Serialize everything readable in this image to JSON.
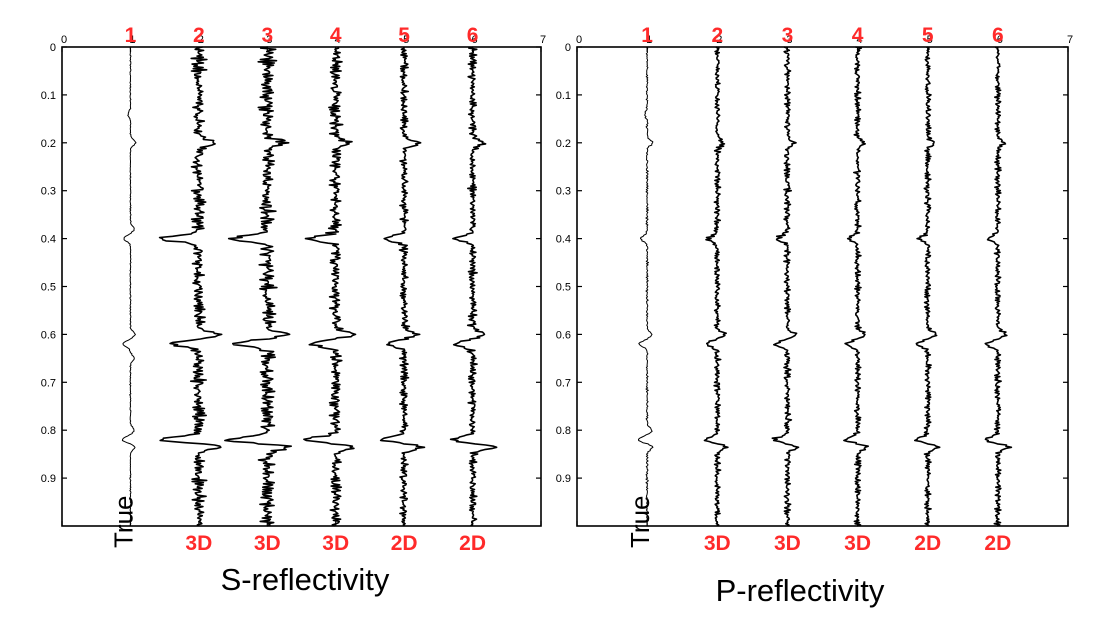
{
  "colors": {
    "trace": "#000000",
    "label_red": "#ff2a2a",
    "background": "#ffffff"
  },
  "chart_data": [
    {
      "type": "line",
      "title": "S-reflectivity",
      "x_axis": {
        "ticks": [
          0,
          1,
          2,
          3,
          4,
          5,
          6,
          7
        ],
        "range": [
          0,
          7
        ],
        "position": "top"
      },
      "y_axis": {
        "ticks": [
          0,
          0.1,
          0.2,
          0.3,
          0.4,
          0.5,
          0.6,
          0.7,
          0.8,
          0.9
        ],
        "range": [
          0,
          1.0
        ],
        "inverted": true
      },
      "grid": false,
      "trace_labels_top": [
        "1",
        "2",
        "3",
        "4",
        "5",
        "6"
      ],
      "trace_labels_bottom": [
        "True",
        "3D",
        "3D",
        "3D",
        "2D",
        "2D"
      ],
      "traces": [
        {
          "label": "1",
          "kind": "True",
          "center": 1,
          "amplitude": 0.05,
          "noise": 0.18,
          "spikes": [
            [
              0.14,
              -0.3
            ],
            [
              0.2,
              0.7
            ],
            [
              0.4,
              -0.9
            ],
            [
              0.38,
              0.5
            ],
            [
              0.6,
              0.6
            ],
            [
              0.62,
              -1.0
            ],
            [
              0.65,
              0.5
            ],
            [
              0.8,
              0.5
            ],
            [
              0.82,
              -1.1
            ],
            [
              0.835,
              0.6
            ]
          ]
        },
        {
          "label": "2",
          "kind": "3D",
          "center": 2,
          "amplitude": 0.22,
          "noise": 0.45,
          "spikes": [
            [
              0.2,
              0.5
            ],
            [
              0.4,
              -1.2
            ],
            [
              0.6,
              0.6
            ],
            [
              0.62,
              -0.8
            ],
            [
              0.82,
              -1.2
            ],
            [
              0.835,
              0.7
            ]
          ]
        },
        {
          "label": "3",
          "kind": "3D",
          "center": 3,
          "amplitude": 0.24,
          "noise": 0.5,
          "spikes": [
            [
              0.2,
              0.5
            ],
            [
              0.4,
              -1.0
            ],
            [
              0.6,
              0.5
            ],
            [
              0.62,
              -0.9
            ],
            [
              0.82,
              -1.1
            ],
            [
              0.835,
              0.6
            ]
          ]
        },
        {
          "label": "4",
          "kind": "3D",
          "center": 4,
          "amplitude": 0.2,
          "noise": 0.45,
          "spikes": [
            [
              0.2,
              0.4
            ],
            [
              0.4,
              -0.9
            ],
            [
              0.6,
              0.6
            ],
            [
              0.62,
              -0.8
            ],
            [
              0.82,
              -1.0
            ],
            [
              0.835,
              0.6
            ]
          ]
        },
        {
          "label": "5",
          "kind": "2D",
          "center": 5,
          "amplitude": 0.16,
          "noise": 0.4,
          "spikes": [
            [
              0.2,
              0.6
            ],
            [
              0.4,
              -0.8
            ],
            [
              0.6,
              0.5
            ],
            [
              0.62,
              -0.7
            ],
            [
              0.82,
              -0.9
            ],
            [
              0.835,
              0.7
            ]
          ]
        },
        {
          "label": "6",
          "kind": "2D",
          "center": 6,
          "amplitude": 0.15,
          "noise": 0.4,
          "spikes": [
            [
              0.2,
              0.5
            ],
            [
              0.4,
              -0.8
            ],
            [
              0.6,
              0.5
            ],
            [
              0.62,
              -0.8
            ],
            [
              0.82,
              -0.9
            ],
            [
              0.835,
              1.0
            ]
          ]
        }
      ]
    },
    {
      "type": "line",
      "title": "P-reflectivity",
      "x_axis": {
        "ticks": [
          0,
          1,
          2,
          3,
          4,
          5,
          6,
          7
        ],
        "range": [
          0,
          7
        ],
        "position": "top"
      },
      "y_axis": {
        "ticks": [
          0,
          0.1,
          0.2,
          0.3,
          0.4,
          0.5,
          0.6,
          0.7,
          0.8,
          0.9
        ],
        "range": [
          0,
          1.0
        ],
        "inverted": true
      },
      "grid": false,
      "trace_labels_top": [
        "1",
        "2",
        "3",
        "4",
        "5",
        "6"
      ],
      "trace_labels_bottom": [
        "True",
        "3D",
        "3D",
        "3D",
        "2D",
        "2D"
      ],
      "traces": [
        {
          "label": "1",
          "kind": "True",
          "center": 1,
          "amplitude": 0.06,
          "noise": 0.25,
          "spikes": [
            [
              0.14,
              -0.3
            ],
            [
              0.2,
              0.6
            ],
            [
              0.4,
              -0.7
            ],
            [
              0.6,
              0.5
            ],
            [
              0.62,
              -0.9
            ],
            [
              0.8,
              0.5
            ],
            [
              0.82,
              -1.0
            ],
            [
              0.835,
              0.6
            ]
          ]
        },
        {
          "label": "2",
          "kind": "3D",
          "center": 2,
          "amplitude": 0.1,
          "noise": 0.45,
          "spikes": [
            [
              0.2,
              0.4
            ],
            [
              0.4,
              -0.6
            ],
            [
              0.6,
              0.5
            ],
            [
              0.62,
              -0.7
            ],
            [
              0.82,
              -0.8
            ],
            [
              0.835,
              0.6
            ]
          ]
        },
        {
          "label": "3",
          "kind": "3D",
          "center": 3,
          "amplitude": 0.11,
          "noise": 0.45,
          "spikes": [
            [
              0.2,
              0.4
            ],
            [
              0.4,
              -0.6
            ],
            [
              0.6,
              0.5
            ],
            [
              0.62,
              -0.7
            ],
            [
              0.82,
              -0.8
            ],
            [
              0.835,
              0.6
            ]
          ]
        },
        {
          "label": "4",
          "kind": "3D",
          "center": 4,
          "amplitude": 0.1,
          "noise": 0.45,
          "spikes": [
            [
              0.2,
              0.4
            ],
            [
              0.4,
              -0.6
            ],
            [
              0.6,
              0.5
            ],
            [
              0.62,
              -0.7
            ],
            [
              0.82,
              -0.8
            ],
            [
              0.835,
              0.6
            ]
          ]
        },
        {
          "label": "5",
          "kind": "2D",
          "center": 5,
          "amplitude": 0.1,
          "noise": 0.45,
          "spikes": [
            [
              0.2,
              0.4
            ],
            [
              0.4,
              -0.6
            ],
            [
              0.6,
              0.5
            ],
            [
              0.62,
              -0.7
            ],
            [
              0.82,
              -0.8
            ],
            [
              0.835,
              0.6
            ]
          ]
        },
        {
          "label": "6",
          "kind": "2D",
          "center": 6,
          "amplitude": 0.1,
          "noise": 0.45,
          "spikes": [
            [
              0.2,
              0.4
            ],
            [
              0.4,
              -0.6
            ],
            [
              0.6,
              0.5
            ],
            [
              0.62,
              -0.8
            ],
            [
              0.82,
              -0.8
            ],
            [
              0.835,
              0.7
            ]
          ]
        }
      ]
    }
  ]
}
